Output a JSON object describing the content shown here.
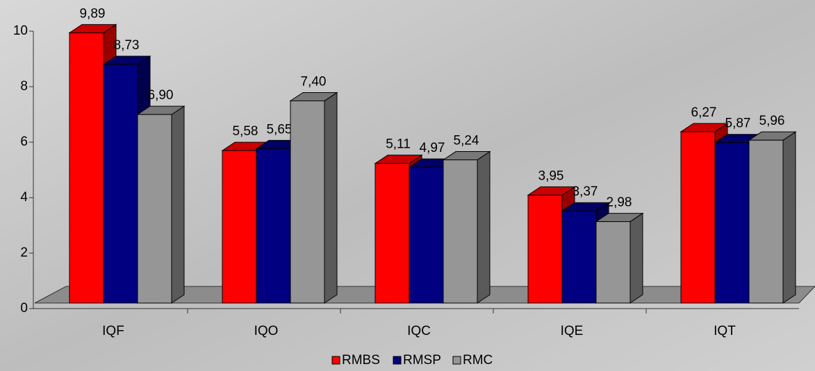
{
  "chart_data": {
    "type": "bar3d",
    "categories": [
      "IQF",
      "IQO",
      "IQC",
      "IQE",
      "IQT"
    ],
    "series": [
      {
        "name": "RMBS",
        "color": "#ff0000",
        "values": [
          9.89,
          5.58,
          5.11,
          3.95,
          6.27
        ],
        "value_labels": [
          "9,89",
          "5,58",
          "5,11",
          "3,95",
          "6,27"
        ]
      },
      {
        "name": "RMSP",
        "color": "#000080",
        "values": [
          8.73,
          5.65,
          4.97,
          3.37,
          5.87
        ],
        "value_labels": [
          "8,73",
          "5,65",
          "4,97",
          "3,37",
          "5,87"
        ]
      },
      {
        "name": "RMC",
        "color": "#969696",
        "values": [
          6.9,
          7.4,
          5.24,
          2.98,
          5.96
        ],
        "value_labels": [
          "6,90",
          "7,40",
          "5,24",
          "2,98",
          "5,96"
        ]
      }
    ],
    "ylim": [
      0,
      10
    ],
    "yticks": [
      0,
      2,
      4,
      6,
      8,
      10
    ],
    "legend": "bottom"
  }
}
